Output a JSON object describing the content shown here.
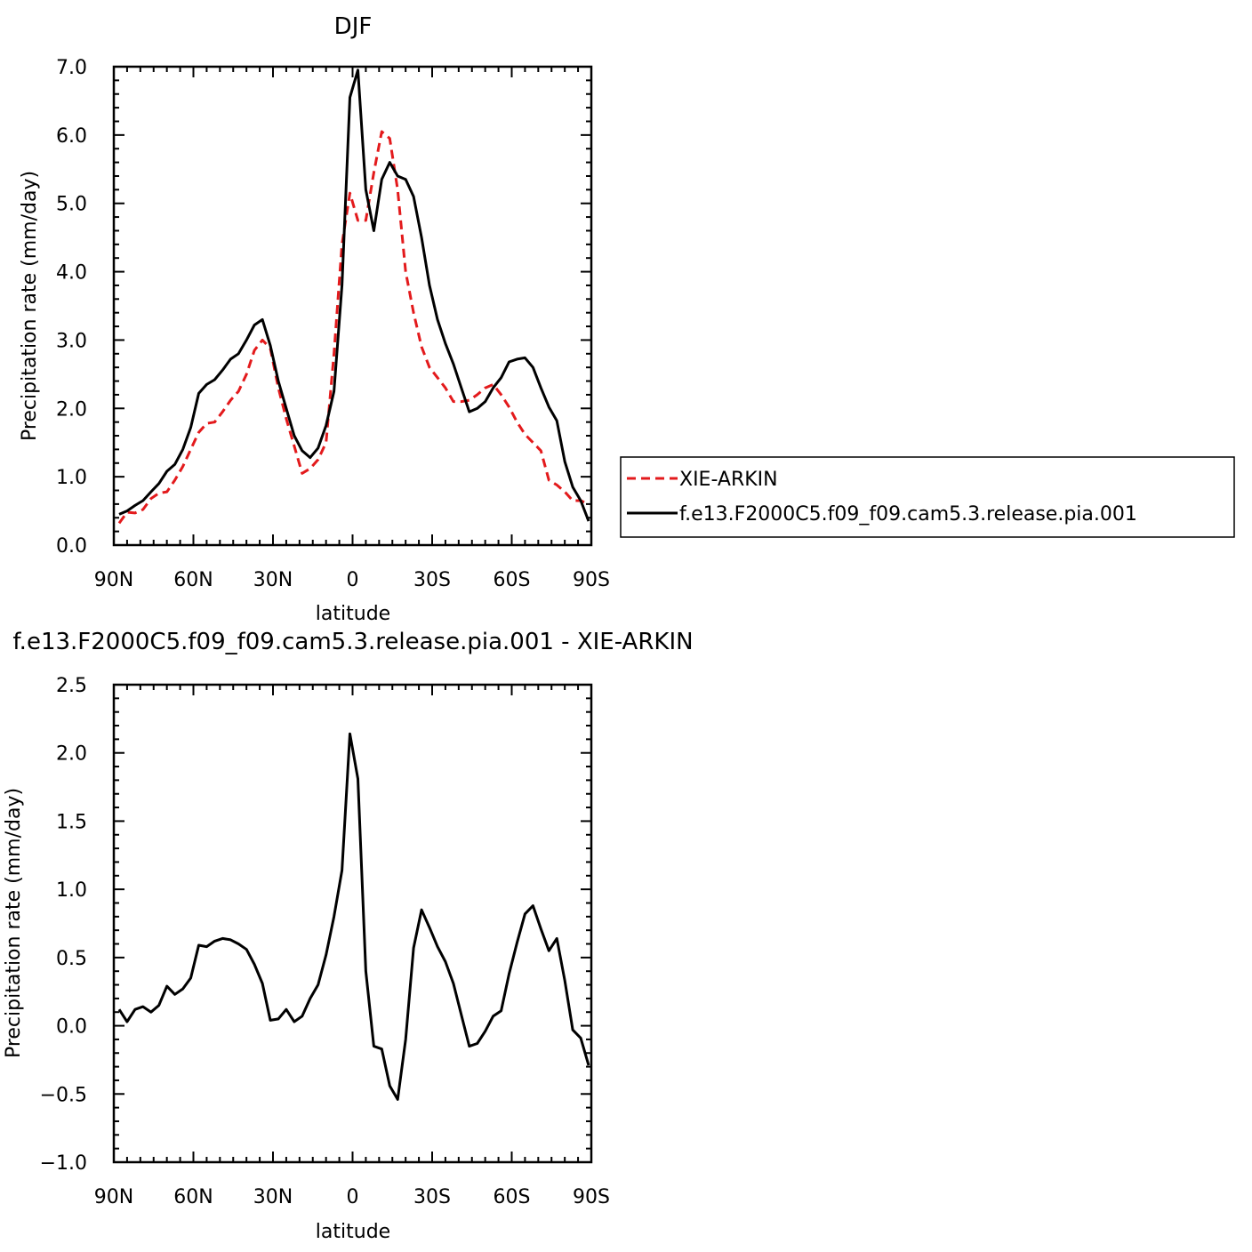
{
  "chart_data": [
    {
      "type": "line",
      "title": "DJF",
      "xlabel": "latitude",
      "ylabel": "Precipitation rate (mm/day)",
      "xlim": [
        90,
        -90
      ],
      "ylim": [
        0,
        7
      ],
      "x_tick_values": [
        90,
        60,
        30,
        0,
        -30,
        -60,
        -90
      ],
      "x_tick_labels": [
        "90N",
        "60N",
        "30N",
        "0",
        "30S",
        "60S",
        "90S"
      ],
      "y_tick_values": [
        0,
        1,
        2,
        3,
        4,
        5,
        6,
        7
      ],
      "y_tick_labels": [
        "0.0",
        "1.0",
        "2.0",
        "3.0",
        "4.0",
        "5.0",
        "6.0",
        "7.0"
      ],
      "grid": false,
      "legend": {
        "placement": "right"
      },
      "x": [
        88,
        85,
        82,
        79,
        76,
        73,
        70,
        67,
        64,
        61,
        58,
        55,
        52,
        49,
        46,
        43,
        40,
        37,
        34,
        31,
        28,
        25,
        22,
        19,
        16,
        13,
        10,
        7,
        4,
        1,
        -2,
        -5,
        -8,
        -11,
        -14,
        -17,
        -20,
        -23,
        -26,
        -29,
        -32,
        -35,
        -38,
        -41,
        -44,
        -47,
        -50,
        -53,
        -56,
        -59,
        -62,
        -65,
        -68,
        -71,
        -74,
        -77,
        -80,
        -83,
        -86,
        -89
      ],
      "series": [
        {
          "name": "XIE-ARKIN",
          "color": "#e31a1c",
          "dash": "dashed",
          "values": [
            0.32,
            0.48,
            0.47,
            0.52,
            0.68,
            0.76,
            0.78,
            0.95,
            1.15,
            1.4,
            1.65,
            1.78,
            1.8,
            1.95,
            2.12,
            2.25,
            2.5,
            2.85,
            3.0,
            2.88,
            2.3,
            1.85,
            1.45,
            1.05,
            1.12,
            1.25,
            1.5,
            2.8,
            4.4,
            5.15,
            4.75,
            4.75,
            5.45,
            6.05,
            5.95,
            5.2,
            4.0,
            3.4,
            2.9,
            2.6,
            2.45,
            2.3,
            2.1,
            2.1,
            2.12,
            2.2,
            2.3,
            2.35,
            2.2,
            2.02,
            1.8,
            1.62,
            1.5,
            1.38,
            0.95,
            0.88,
            0.78,
            0.65,
            0.65,
            0.6
          ]
        },
        {
          "name": "f.e13.F2000C5.f09_f09.cam5.3.release.pia.001",
          "color": "#000000",
          "dash": "solid",
          "values": [
            0.45,
            0.5,
            0.58,
            0.65,
            0.78,
            0.9,
            1.08,
            1.18,
            1.4,
            1.72,
            2.22,
            2.35,
            2.42,
            2.56,
            2.72,
            2.8,
            3.0,
            3.22,
            3.3,
            2.92,
            2.4,
            2.0,
            1.6,
            1.38,
            1.28,
            1.42,
            1.75,
            2.25,
            3.8,
            6.55,
            6.95,
            5.2,
            4.6,
            5.35,
            5.6,
            5.4,
            5.35,
            5.1,
            4.5,
            3.8,
            3.3,
            2.95,
            2.65,
            2.3,
            1.95,
            2.0,
            2.1,
            2.3,
            2.45,
            2.68,
            2.72,
            2.74,
            2.6,
            2.3,
            2.02,
            1.82,
            1.22,
            0.85,
            0.65,
            0.35
          ]
        }
      ]
    },
    {
      "type": "line",
      "title": "f.e13.F2000C5.f09_f09.cam5.3.release.pia.001 - XIE-ARKIN",
      "xlabel": "latitude",
      "ylabel": "Precipitation rate (mm/day)",
      "xlim": [
        90,
        -90
      ],
      "ylim": [
        -1.0,
        2.5
      ],
      "x_tick_values": [
        90,
        60,
        30,
        0,
        -30,
        -60,
        -90
      ],
      "x_tick_labels": [
        "90N",
        "60N",
        "30N",
        "0",
        "30S",
        "60S",
        "90S"
      ],
      "y_tick_values": [
        -1.0,
        -0.5,
        0.0,
        0.5,
        1.0,
        1.5,
        2.0,
        2.5
      ],
      "y_tick_labels": [
        "−1.0",
        "−0.5",
        "0.0",
        "0.5",
        "1.0",
        "1.5",
        "2.0",
        "2.5"
      ],
      "grid": false,
      "x": [
        88,
        85,
        82,
        79,
        76,
        73,
        70,
        67,
        64,
        61,
        58,
        55,
        52,
        49,
        46,
        43,
        40,
        37,
        34,
        31,
        28,
        25,
        22,
        19,
        16,
        13,
        10,
        7,
        4,
        1,
        -2,
        -5,
        -8,
        -11,
        -14,
        -17,
        -20,
        -23,
        -26,
        -29,
        -32,
        -35,
        -38,
        -41,
        -44,
        -47,
        -50,
        -53,
        -56,
        -59,
        -62,
        -65,
        -68,
        -71,
        -74,
        -77,
        -80,
        -83,
        -86,
        -89
      ],
      "series": [
        {
          "color": "#000000",
          "dash": "solid",
          "values": [
            0.12,
            0.03,
            0.12,
            0.14,
            0.1,
            0.15,
            0.29,
            0.23,
            0.27,
            0.35,
            0.59,
            0.58,
            0.62,
            0.64,
            0.63,
            0.6,
            0.56,
            0.45,
            0.31,
            0.04,
            0.05,
            0.12,
            0.03,
            0.07,
            0.2,
            0.3,
            0.52,
            0.8,
            1.14,
            2.14,
            1.81,
            0.4,
            -0.15,
            -0.17,
            -0.44,
            -0.54,
            -0.1,
            0.57,
            0.85,
            0.72,
            0.58,
            0.47,
            0.31,
            0.08,
            -0.15,
            -0.13,
            -0.04,
            0.07,
            0.11,
            0.38,
            0.61,
            0.82,
            0.88,
            0.71,
            0.55,
            0.64,
            0.33,
            -0.03,
            -0.09,
            -0.29
          ]
        }
      ]
    }
  ]
}
